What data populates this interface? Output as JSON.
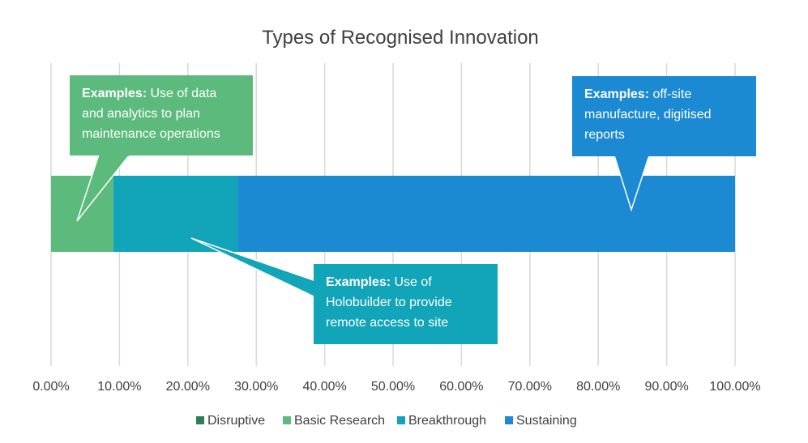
{
  "chart_data": {
    "type": "bar",
    "orientation": "horizontal",
    "stacked": true,
    "title": "Types of Recognised Innovation",
    "xlabel": "",
    "ylabel": "",
    "xlim": [
      0,
      100
    ],
    "x_tick_labels": [
      "0.00%",
      "10.00%",
      "20.00%",
      "30.00%",
      "40.00%",
      "50.00%",
      "60.00%",
      "70.00%",
      "80.00%",
      "90.00%",
      "100.00%"
    ],
    "grid": true,
    "legend_position": "bottom",
    "categories": [
      ""
    ],
    "series": [
      {
        "name": "Disruptive",
        "values": [
          0
        ],
        "color": "#2e7d57"
      },
      {
        "name": "Basic Research",
        "values": [
          9.1
        ],
        "color": "#5cbb7c"
      },
      {
        "name": "Breakthrough",
        "values": [
          18.2
        ],
        "color": "#12a4b8"
      },
      {
        "name": "Sustaining",
        "values": [
          72.7
        ],
        "color": "#1b8ad3"
      }
    ],
    "annotations": [
      {
        "series": "Basic Research",
        "bold": "Examples:",
        "lines": [
          " Use of data",
          "and analytics to plan",
          "maintenance operations"
        ]
      },
      {
        "series": "Breakthrough",
        "bold": "Examples:",
        "lines": [
          " Use of",
          "Holobuilder to provide",
          "remote access to site"
        ]
      },
      {
        "series": "Sustaining",
        "bold": "Examples:",
        "lines": [
          " off-site",
          "manufacture, digitised",
          "reports"
        ]
      }
    ]
  }
}
